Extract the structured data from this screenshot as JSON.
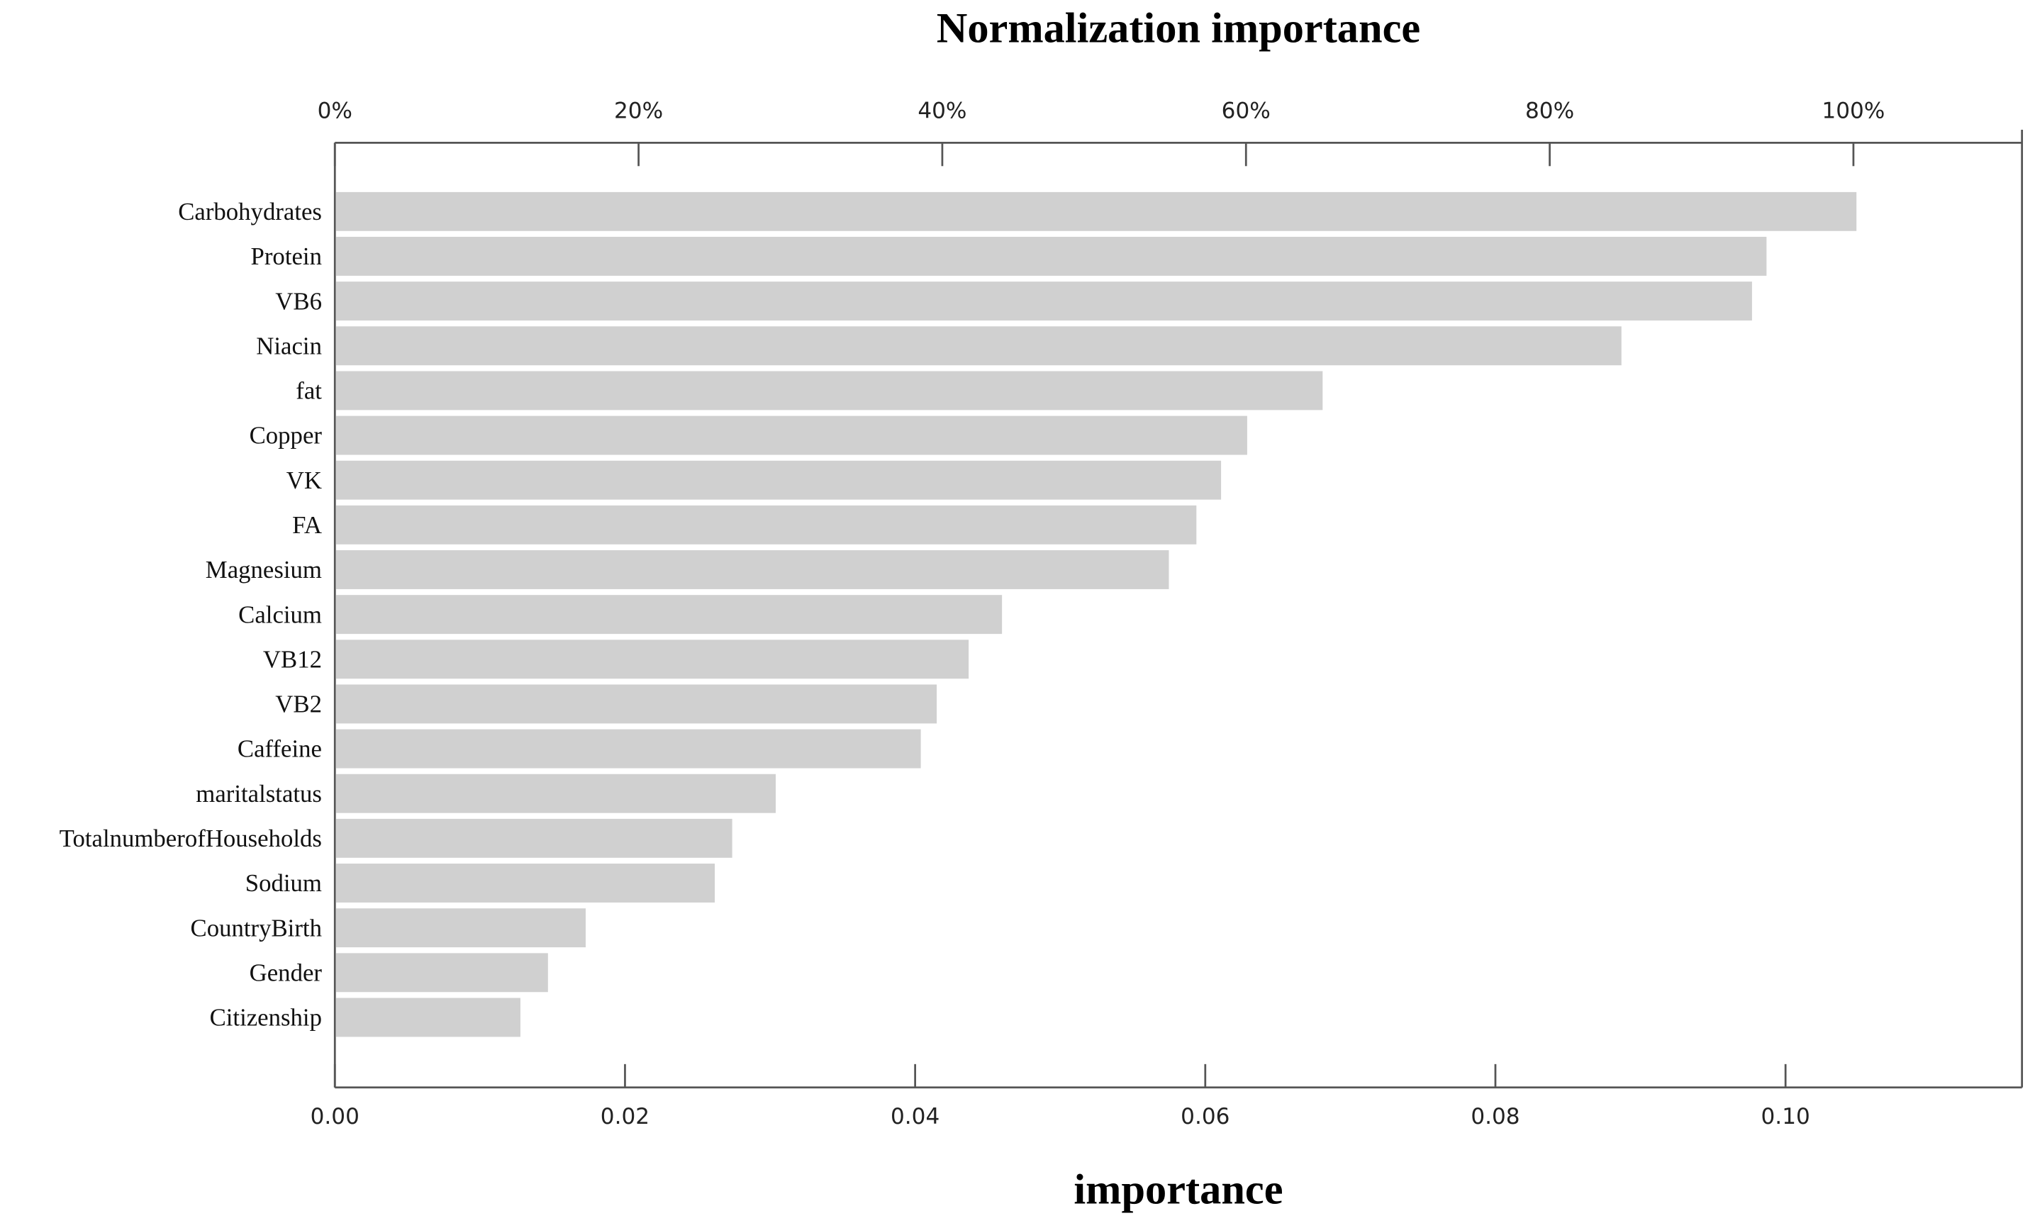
{
  "chart_data": {
    "type": "barh",
    "x2label": "Normalization importance",
    "xlabel": "importance",
    "categories": [
      "Carbohydrates",
      "Protein",
      "VB6",
      "Niacin",
      "fat",
      "Copper",
      "VK",
      "FA",
      "Magnesium",
      "Calcium",
      "VB12",
      "VB2",
      "Caffeine",
      "maritalstatus",
      "TotalnumberofHouseholds",
      "Sodium",
      "CountryBirth",
      "Gender",
      "Citizenship"
    ],
    "values": [
      0.1048,
      0.0986,
      0.0976,
      0.0886,
      0.068,
      0.0628,
      0.061,
      0.0593,
      0.0574,
      0.0459,
      0.0436,
      0.0414,
      0.0403,
      0.0303,
      0.0273,
      0.0261,
      0.0172,
      0.0146,
      0.0127
    ],
    "color": "#d0d0d0",
    "xlim": [
      0,
      0.1163
    ],
    "xticks": [
      {
        "value": 0,
        "label": "0.00"
      },
      {
        "value": 0.02,
        "label": "0.02"
      },
      {
        "value": 0.04,
        "label": "0.04"
      },
      {
        "value": 0.06,
        "label": "0.06"
      },
      {
        "value": 0.08,
        "label": "0.08"
      },
      {
        "value": 0.1,
        "label": "0.10"
      }
    ],
    "x2lim": [
      0,
      111.1
    ],
    "x2ticks": [
      {
        "value": 0,
        "label": "0%"
      },
      {
        "value": 20,
        "label": "20%"
      },
      {
        "value": 40,
        "label": "40%"
      },
      {
        "value": 60,
        "label": "60%"
      },
      {
        "value": 80,
        "label": "80%"
      },
      {
        "value": 100,
        "label": "100%"
      }
    ],
    "grid": false
  }
}
